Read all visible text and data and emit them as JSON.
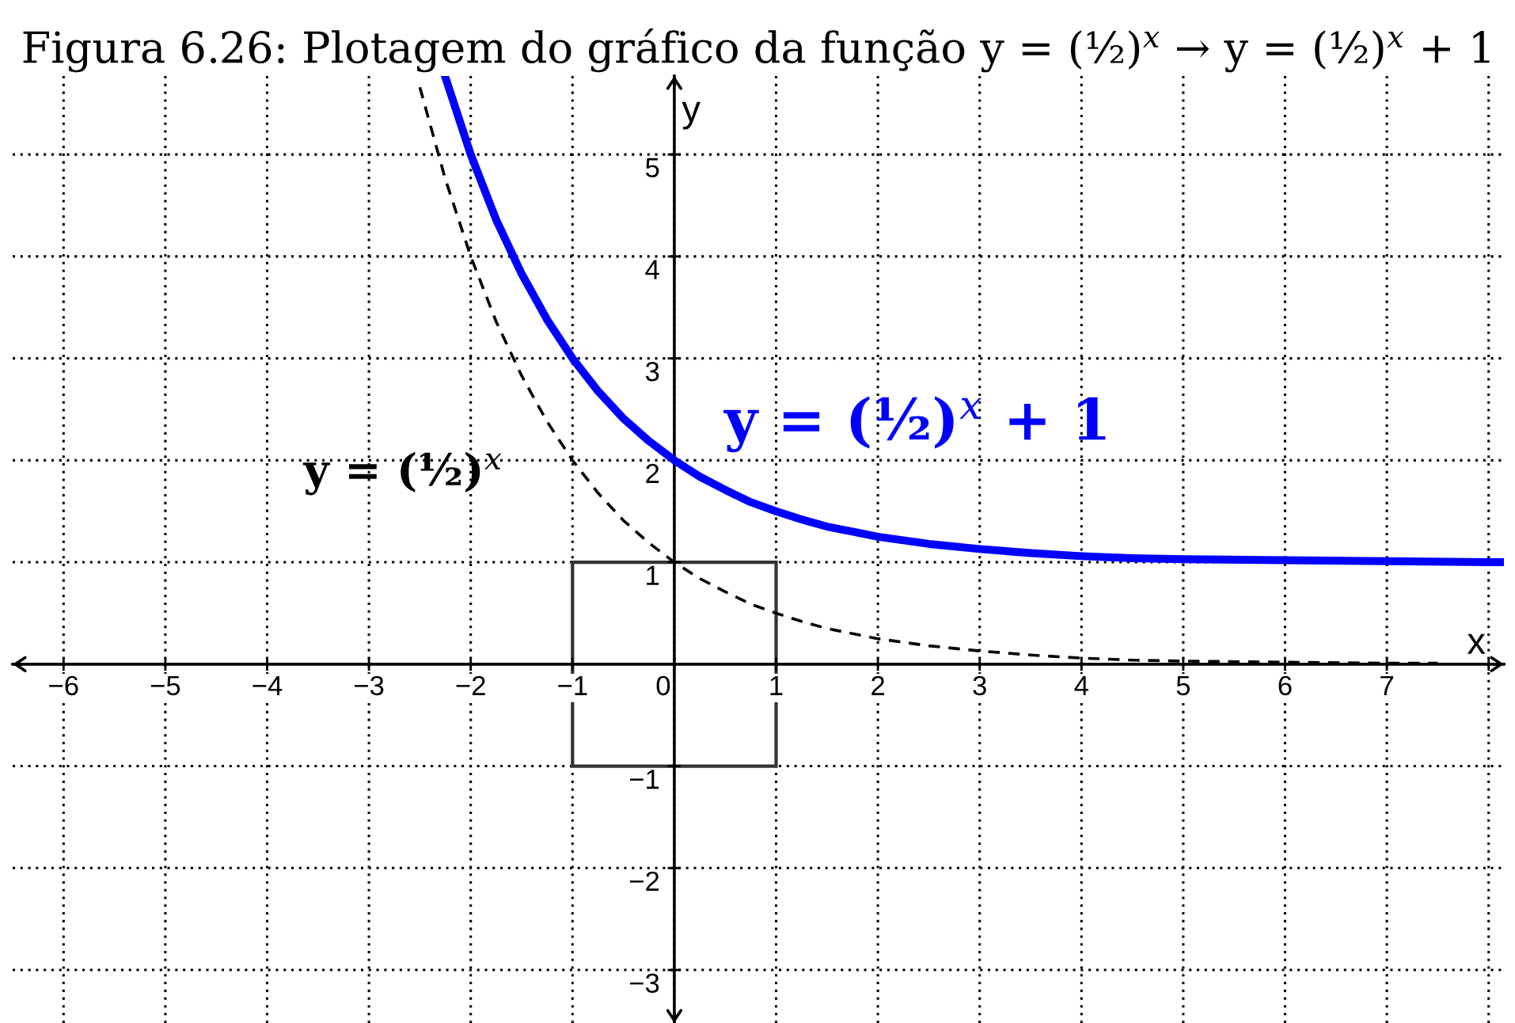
{
  "chart_data": {
    "type": "line",
    "title": "Figura 6.26: Plotagem do gráfico da função y = (½)$^{x}$ → y = (½)$^{x}$ + 1",
    "xlabel": "x",
    "ylabel": "y",
    "xlim": [
      -6.5,
      8.15
    ],
    "ylim": [
      -3.52,
      5.77
    ],
    "xticks": [
      {
        "value": -6,
        "label": "−6"
      },
      {
        "value": -5,
        "label": "−5"
      },
      {
        "value": -4,
        "label": "−4"
      },
      {
        "value": -3,
        "label": "−3"
      },
      {
        "value": -2,
        "label": "−2"
      },
      {
        "value": -1,
        "label": "−1"
      },
      0,
      1,
      2,
      3,
      4,
      5,
      6,
      7,
      {
        "value": 8,
        "label": null
      }
    ],
    "yticks": [
      {
        "value": -3,
        "label": "−3"
      },
      {
        "value": -2,
        "label": "−2"
      },
      {
        "value": -1,
        "label": "−1"
      },
      1,
      2,
      3,
      4,
      5
    ],
    "grid": true,
    "marker": "none",
    "line_style": "solid",
    "series": [
      {
        "name": "y = (½)$^{x}$",
        "color": "#000000",
        "line_style": "dashed",
        "x": [
          -2.5,
          -2.25,
          -2,
          -1.75,
          -1.5,
          -1.25,
          -1,
          -0.75,
          -0.5,
          -0.25,
          0,
          0.25,
          0.5,
          0.75,
          1,
          1.25,
          1.5,
          1.75,
          2,
          2.5,
          3,
          3.5,
          4,
          4.5,
          5,
          6,
          7,
          7.5
        ],
        "values": [
          5.66,
          4.76,
          4.0,
          3.36,
          2.83,
          2.38,
          2.0,
          1.68,
          1.41,
          1.19,
          1.0,
          0.84,
          0.71,
          0.59,
          0.5,
          0.42,
          0.35,
          0.3,
          0.25,
          0.18,
          0.13,
          0.09,
          0.06,
          0.04,
          0.03,
          0.02,
          0.01,
          0.01
        ]
      },
      {
        "name": "y = (½)$^{x}$ + 1",
        "color": "#0000ff",
        "x": [
          -2.25,
          -2,
          -1.75,
          -1.5,
          -1.25,
          -1,
          -0.75,
          -0.5,
          -0.25,
          0,
          0.25,
          0.5,
          0.75,
          1,
          1.25,
          1.5,
          1.75,
          2,
          2.5,
          3,
          3.5,
          4,
          4.5,
          5,
          6,
          7,
          8,
          8.15
        ],
        "values": [
          5.76,
          5.0,
          4.36,
          3.83,
          3.38,
          3.0,
          2.68,
          2.41,
          2.19,
          2.0,
          1.84,
          1.71,
          1.59,
          1.5,
          1.42,
          1.35,
          1.3,
          1.25,
          1.18,
          1.13,
          1.09,
          1.06,
          1.04,
          1.03,
          1.02,
          1.01,
          1.0,
          1.0
        ]
      }
    ]
  }
}
